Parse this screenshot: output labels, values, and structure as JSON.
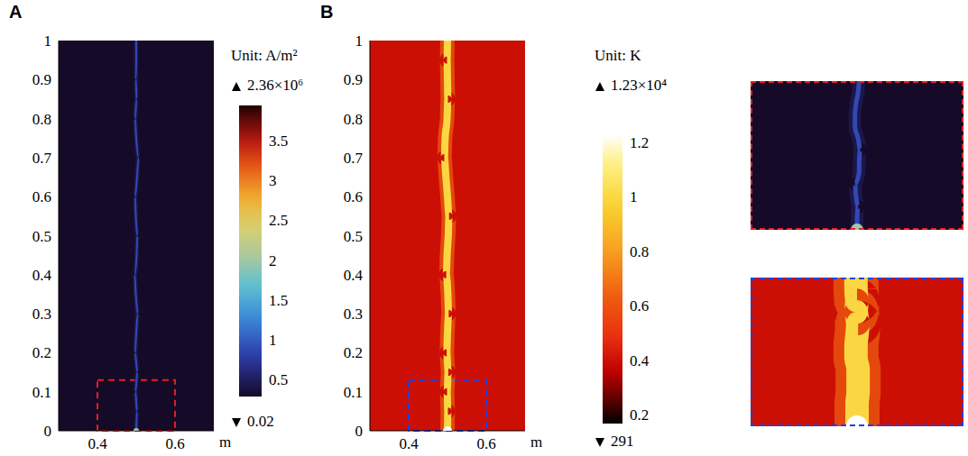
{
  "chart_data": [
    {
      "type": "heatmap",
      "title": "A",
      "xlabel": "m",
      "xlim": [
        0.3,
        0.7
      ],
      "xticks": [
        0.4,
        0.6
      ],
      "ylim": [
        0,
        1
      ],
      "yticks": [
        0,
        0.1,
        0.2,
        0.3,
        0.4,
        0.5,
        0.6,
        0.7,
        0.8,
        0.9,
        1
      ],
      "background_level": 0.02,
      "arc": {
        "x": [
          0.5,
          0.502,
          0.498,
          0.503,
          0.497,
          0.5,
          0.504,
          0.499,
          0.496,
          0.501,
          0.503,
          0.499,
          0.497,
          0.502,
          0.506,
          0.5,
          0.497,
          0.501,
          0.499,
          0.5,
          0.5
        ],
        "y": [
          0,
          0.05,
          0.1,
          0.15,
          0.2,
          0.25,
          0.3,
          0.35,
          0.4,
          0.45,
          0.5,
          0.55,
          0.6,
          0.65,
          0.7,
          0.75,
          0.8,
          0.85,
          0.9,
          0.95,
          1
        ],
        "core_level": 0.9,
        "edge_level": 0.5,
        "spot_level": 2.0
      },
      "colorbar": {
        "label": "Unit: A/m²",
        "range": [
          0.3,
          3.95
        ],
        "ticks": [
          0.5,
          1,
          1.5,
          2,
          2.5,
          3,
          3.5
        ],
        "max": {
          "value": 2360000,
          "label": "2.36×10⁶"
        },
        "min": {
          "value": 0.02,
          "label": "0.02"
        }
      },
      "zoom_box": {
        "x": [
          0.4,
          0.6
        ],
        "y": [
          0,
          0.13
        ],
        "color": "#e02020"
      },
      "inset": {
        "xlim": [
          0.4,
          0.6
        ],
        "ylim": [
          0,
          0.13
        ],
        "tick_labels": false,
        "color": "#e02020",
        "x": [
          0.5,
          0.5,
          0.501,
          0.499,
          0.498,
          0.502,
          0.502,
          0.503,
          0.501,
          0.498,
          0.498,
          0.499,
          0.501,
          0.502
        ],
        "y": [
          0,
          0.01,
          0.02,
          0.03,
          0.04,
          0.05,
          0.06,
          0.07,
          0.08,
          0.09,
          0.1,
          0.11,
          0.12,
          0.13
        ]
      }
    },
    {
      "type": "heatmap",
      "title": "B",
      "xlabel": "m",
      "xlim": [
        0.3,
        0.7
      ],
      "xticks": [
        0.4,
        0.6
      ],
      "ylim": [
        0,
        1
      ],
      "yticks": [
        0,
        0.1,
        0.2,
        0.3,
        0.4,
        0.5,
        0.6,
        0.7,
        0.8,
        0.9,
        1
      ],
      "background_level": 0.4,
      "arc": {
        "x": [
          0.5,
          0.501,
          0.499,
          0.502,
          0.498,
          0.5,
          0.503,
          0.501,
          0.497,
          0.499,
          0.502,
          0.504,
          0.5,
          0.496,
          0.492,
          0.494,
          0.499,
          0.501,
          0.5,
          0.499,
          0.5
        ],
        "y": [
          0,
          0.05,
          0.1,
          0.15,
          0.2,
          0.25,
          0.3,
          0.35,
          0.4,
          0.45,
          0.5,
          0.55,
          0.6,
          0.65,
          0.7,
          0.75,
          0.8,
          0.85,
          0.9,
          0.95,
          1
        ],
        "core_level": 1.0,
        "edge_level": 0.65,
        "spot_level": 1.23
      },
      "colorbar": {
        "label": "Unit: K",
        "range": [
          0.17,
          1.23
        ],
        "ticks": [
          0.2,
          0.4,
          0.6,
          0.8,
          1,
          1.2
        ],
        "max": {
          "value": 12300,
          "label": "1.23×10⁴"
        },
        "min": {
          "value": 291,
          "label": "291"
        }
      },
      "zoom_box": {
        "x": [
          0.4,
          0.6
        ],
        "y": [
          0,
          0.13
        ],
        "color": "#2040e0"
      },
      "inset": {
        "xlim": [
          0.4,
          0.6
        ],
        "ylim": [
          0,
          0.13
        ],
        "tick_labels": false,
        "color": "#2040e0",
        "x": [
          0.5,
          0.5,
          0.5,
          0.501,
          0.501,
          0.501,
          0.499,
          0.499,
          0.5,
          0.501,
          0.499,
          0.5,
          0.499,
          0.499
        ],
        "y": [
          0,
          0.01,
          0.02,
          0.03,
          0.04,
          0.05,
          0.06,
          0.07,
          0.08,
          0.09,
          0.1,
          0.11,
          0.12,
          0.13
        ]
      }
    }
  ]
}
